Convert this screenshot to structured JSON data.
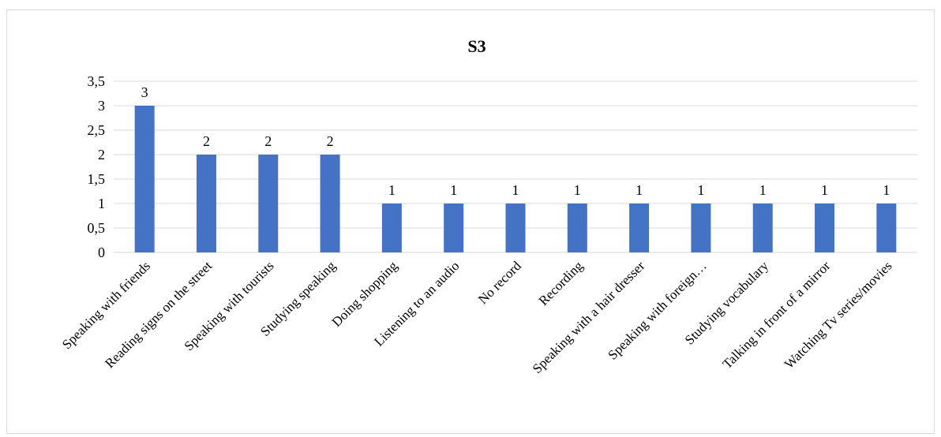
{
  "chart_data": {
    "type": "bar",
    "title": "S3",
    "xlabel": "",
    "ylabel": "",
    "categories": [
      "Speaking with friends",
      "Reading signs on the street",
      "Speaking with tourists",
      "Studying speaking",
      "Doing shopping",
      "Listening to an audio",
      "No record",
      "Recording",
      "Speaking with a hair dresser",
      "Speaking with foreign…",
      "Studying vocabulary",
      "Talking in front of a mirror",
      "Watching Tv series/movies"
    ],
    "values": [
      3,
      2,
      2,
      2,
      1,
      1,
      1,
      1,
      1,
      1,
      1,
      1,
      1
    ],
    "data_labels": [
      "3",
      "2",
      "2",
      "2",
      "1",
      "1",
      "1",
      "1",
      "1",
      "1",
      "1",
      "1",
      "1"
    ],
    "ylim": [
      0,
      3.5
    ],
    "yticks": [
      0,
      0.5,
      1,
      1.5,
      2,
      2.5,
      3,
      3.5
    ],
    "ytick_labels": [
      "0",
      "0,5",
      "1",
      "1,5",
      "2",
      "2,5",
      "3",
      "3,5"
    ],
    "grid": true,
    "legend": "none",
    "bar_color": "#4472c4"
  }
}
